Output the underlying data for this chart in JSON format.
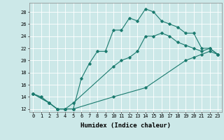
{
  "line1": {
    "x": [
      0,
      1,
      2,
      3,
      4,
      5,
      6,
      7,
      8,
      9,
      10,
      11,
      12,
      13,
      14,
      15,
      16,
      17,
      18,
      19,
      20,
      21,
      22,
      23
    ],
    "y": [
      14.5,
      14,
      13,
      12,
      12,
      12,
      17,
      19.5,
      21.5,
      21.5,
      25,
      25,
      27,
      26.5,
      28.5,
      28,
      26.5,
      26,
      25.5,
      24.5,
      24.5,
      22,
      22,
      21
    ]
  },
  "line2": {
    "x": [
      0,
      2,
      3,
      4,
      5,
      10,
      11,
      12,
      13,
      14,
      15,
      16,
      17,
      18,
      19,
      20,
      21,
      22,
      23
    ],
    "y": [
      14.5,
      13,
      12,
      12,
      13,
      19,
      20,
      20.5,
      21.5,
      24,
      24,
      24.5,
      24,
      23,
      22.5,
      22,
      21.5,
      22,
      21
    ]
  },
  "line3": {
    "x": [
      0,
      2,
      3,
      4,
      5,
      10,
      14,
      19,
      20,
      21,
      22,
      23
    ],
    "y": [
      14.5,
      13,
      12,
      12,
      12,
      14,
      15.5,
      20,
      20.5,
      21,
      21.5,
      21
    ]
  },
  "color": "#1a7a6e",
  "bg_color": "#cce8e8",
  "grid_color": "#ffffff",
  "xlim": [
    -0.5,
    23.5
  ],
  "ylim": [
    11.5,
    29.5
  ],
  "xlabel": "Humidex (Indice chaleur)",
  "xticks": [
    0,
    1,
    2,
    3,
    4,
    5,
    6,
    7,
    8,
    9,
    10,
    11,
    12,
    13,
    14,
    15,
    16,
    17,
    18,
    19,
    20,
    21,
    22,
    23
  ],
  "yticks": [
    12,
    14,
    16,
    18,
    20,
    22,
    24,
    26,
    28
  ],
  "label_fontsize": 6.5,
  "tick_fontsize": 5.0
}
